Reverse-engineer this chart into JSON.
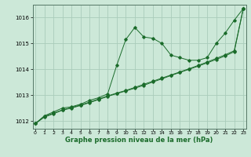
{
  "xlabel": "Graphe pression niveau de la mer (hPa)",
  "background_color": "#cce8d8",
  "grid_color": "#aaccbb",
  "line_color": "#1a6b2a",
  "x_ticks": [
    0,
    1,
    2,
    3,
    4,
    5,
    6,
    7,
    8,
    9,
    10,
    11,
    12,
    13,
    14,
    15,
    16,
    17,
    18,
    19,
    20,
    21,
    22,
    23
  ],
  "ylim": [
    1011.7,
    1016.5
  ],
  "xlim": [
    -0.3,
    23.3
  ],
  "yticks": [
    1012,
    1013,
    1014,
    1015,
    1016
  ],
  "series1_y": [
    1011.9,
    1012.2,
    1012.35,
    1012.5,
    1012.55,
    1012.65,
    1012.8,
    1012.9,
    1013.05,
    1014.15,
    1015.15,
    1015.62,
    1015.25,
    1015.2,
    1015.0,
    1014.55,
    1014.45,
    1014.35,
    1014.35,
    1014.45,
    1015.0,
    1015.4,
    1015.9,
    1016.35
  ],
  "series2_y": [
    1011.9,
    1012.18,
    1012.3,
    1012.43,
    1012.52,
    1012.62,
    1012.73,
    1012.85,
    1012.97,
    1013.08,
    1013.18,
    1013.3,
    1013.42,
    1013.54,
    1013.66,
    1013.78,
    1013.9,
    1014.02,
    1014.15,
    1014.28,
    1014.42,
    1014.56,
    1014.72,
    1016.35
  ],
  "series3_y": [
    1011.9,
    1012.15,
    1012.28,
    1012.42,
    1012.5,
    1012.6,
    1012.71,
    1012.83,
    1012.95,
    1013.06,
    1013.16,
    1013.27,
    1013.38,
    1013.51,
    1013.63,
    1013.76,
    1013.88,
    1014.0,
    1014.12,
    1014.25,
    1014.38,
    1014.52,
    1014.68,
    1016.35
  ]
}
